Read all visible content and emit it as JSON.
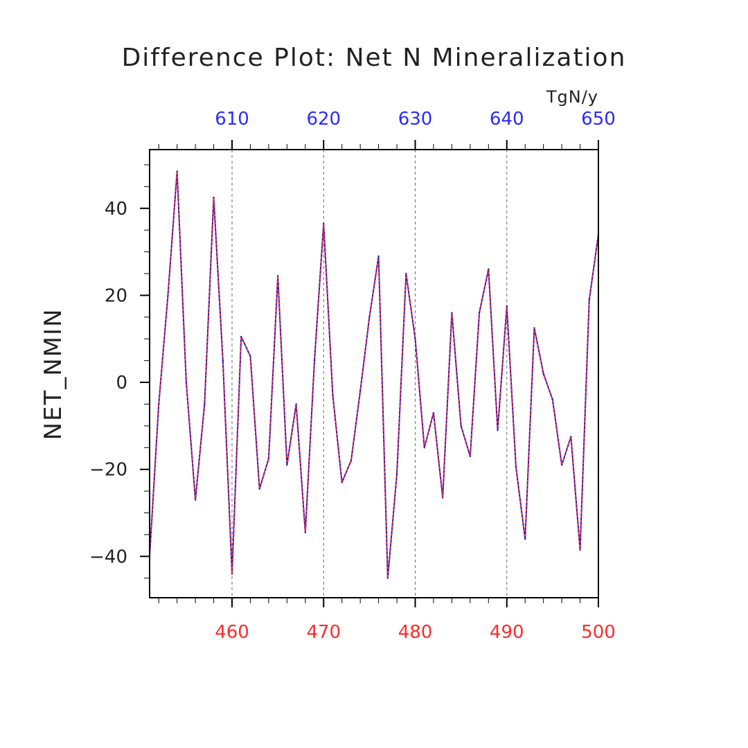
{
  "chart_data": {
    "type": "line",
    "title": "Difference Plot: Net N Mineralization",
    "units": "TgN/y",
    "ylabel": "NET_NMIN",
    "ylim": [
      -49.5,
      53.5
    ],
    "yticks": [
      -40,
      -20,
      0,
      20,
      40
    ],
    "yticks_labels": [
      "−40",
      "−20",
      "0",
      "20",
      "40"
    ],
    "x_bottom": {
      "lim": [
        451,
        500
      ],
      "ticks": [
        460,
        470,
        480,
        490,
        500
      ],
      "color": "#ff2a2a"
    },
    "x_top": {
      "ticks": [
        610,
        620,
        630,
        640,
        650
      ],
      "offset": 150,
      "color": "#2b2bff"
    },
    "grid": "dashed vertical lines at labeled ticks",
    "x": [
      451,
      452,
      453,
      454,
      455,
      456,
      457,
      458,
      459,
      460,
      461,
      462,
      463,
      464,
      465,
      466,
      467,
      468,
      469,
      470,
      471,
      472,
      473,
      474,
      475,
      476,
      477,
      478,
      479,
      480,
      481,
      482,
      483,
      484,
      485,
      486,
      487,
      488,
      489,
      490,
      491,
      492,
      493,
      494,
      495,
      496,
      497,
      498,
      499,
      500
    ],
    "series": [
      {
        "color_solid": "#1a1acc",
        "color_dashed": "#ff3030",
        "values": [
          -40,
          -5,
          20,
          48.5,
          0,
          -27,
          -5,
          42.5,
          5,
          -44,
          10.5,
          6,
          -24.5,
          -17.5,
          24.5,
          -19,
          -5,
          -34.5,
          5,
          36.5,
          -3,
          -23,
          -18,
          -2,
          15,
          29,
          -45,
          -21,
          25,
          10,
          -15,
          -7,
          -26.5,
          16,
          -10,
          -17,
          16,
          26,
          -11,
          17.5,
          -19.5,
          -36,
          12.5,
          2,
          -4,
          -19,
          -12.5,
          -38.5,
          19,
          34
        ]
      }
    ]
  }
}
